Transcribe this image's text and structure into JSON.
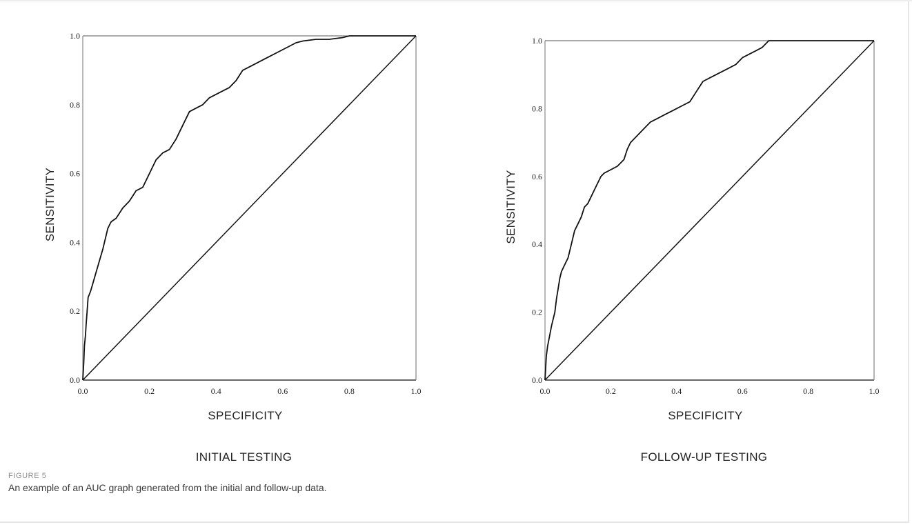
{
  "figure": {
    "label": "FIGURE 5",
    "caption": "An example of an AUC graph generated from the initial and follow-up data."
  },
  "chart_data": [
    {
      "type": "line",
      "title": "INITIAL TESTING",
      "xlabel": "SPECIFICITY",
      "ylabel": "SENSITIVITY",
      "xlim": [
        0,
        1
      ],
      "ylim": [
        0,
        1
      ],
      "x_ticks": [
        "0.0",
        "0.2",
        "0.4",
        "0.6",
        "0.8",
        "1.0"
      ],
      "y_ticks": [
        "0.0",
        "0.2",
        "0.4",
        "0.6",
        "0.8",
        "1.0"
      ],
      "grid": false,
      "series": [
        {
          "role": "roc",
          "x": [
            0.0,
            0.003,
            0.005,
            0.008,
            0.01,
            0.013,
            0.016,
            0.02,
            0.024,
            0.03,
            0.036,
            0.042,
            0.048,
            0.054,
            0.06,
            0.065,
            0.07,
            0.075,
            0.08,
            0.085,
            0.1,
            0.12,
            0.14,
            0.16,
            0.18,
            0.2,
            0.21,
            0.22,
            0.24,
            0.26,
            0.28,
            0.3,
            0.32,
            0.34,
            0.36,
            0.38,
            0.4,
            0.42,
            0.44,
            0.46,
            0.48,
            0.5,
            0.52,
            0.54,
            0.56,
            0.58,
            0.6,
            0.62,
            0.64,
            0.66,
            0.7,
            0.74,
            0.78,
            0.8,
            0.82,
            0.9,
            1.0
          ],
          "y": [
            0.0,
            0.05,
            0.1,
            0.13,
            0.16,
            0.2,
            0.24,
            0.25,
            0.26,
            0.28,
            0.3,
            0.32,
            0.34,
            0.36,
            0.38,
            0.4,
            0.42,
            0.44,
            0.45,
            0.46,
            0.47,
            0.5,
            0.52,
            0.55,
            0.56,
            0.6,
            0.62,
            0.64,
            0.66,
            0.67,
            0.7,
            0.74,
            0.78,
            0.79,
            0.8,
            0.82,
            0.83,
            0.84,
            0.85,
            0.87,
            0.9,
            0.91,
            0.92,
            0.93,
            0.94,
            0.95,
            0.96,
            0.97,
            0.98,
            0.985,
            0.99,
            0.99,
            0.995,
            1.0,
            1.0,
            1.0,
            1.0
          ]
        },
        {
          "role": "reference",
          "x": [
            0,
            1
          ],
          "y": [
            0,
            1
          ]
        }
      ]
    },
    {
      "type": "line",
      "title": "FOLLOW-UP TESTING",
      "xlabel": "SPECIFICITY",
      "ylabel": "SENSITIVITY",
      "xlim": [
        0,
        1
      ],
      "ylim": [
        0,
        1
      ],
      "x_ticks": [
        "0.0",
        "0.2",
        "0.4",
        "0.6",
        "0.8",
        "1.0"
      ],
      "y_ticks": [
        "0.0",
        "0.2",
        "0.4",
        "0.6",
        "0.8",
        "1.0"
      ],
      "grid": false,
      "series": [
        {
          "role": "roc",
          "x": [
            0.0,
            0.004,
            0.008,
            0.012,
            0.016,
            0.02,
            0.025,
            0.03,
            0.035,
            0.04,
            0.045,
            0.05,
            0.06,
            0.07,
            0.08,
            0.09,
            0.1,
            0.11,
            0.12,
            0.13,
            0.14,
            0.15,
            0.16,
            0.17,
            0.18,
            0.2,
            0.22,
            0.24,
            0.25,
            0.26,
            0.28,
            0.3,
            0.32,
            0.34,
            0.36,
            0.38,
            0.4,
            0.42,
            0.44,
            0.46,
            0.48,
            0.5,
            0.52,
            0.54,
            0.56,
            0.58,
            0.6,
            0.62,
            0.64,
            0.66,
            0.67,
            0.68,
            0.7,
            0.74,
            0.78,
            0.82,
            0.86,
            0.9,
            1.0
          ],
          "y": [
            0.0,
            0.07,
            0.1,
            0.12,
            0.14,
            0.16,
            0.18,
            0.2,
            0.24,
            0.27,
            0.3,
            0.32,
            0.34,
            0.36,
            0.4,
            0.44,
            0.46,
            0.48,
            0.51,
            0.52,
            0.54,
            0.56,
            0.58,
            0.6,
            0.61,
            0.62,
            0.63,
            0.65,
            0.68,
            0.7,
            0.72,
            0.74,
            0.76,
            0.77,
            0.78,
            0.79,
            0.8,
            0.81,
            0.82,
            0.85,
            0.88,
            0.89,
            0.9,
            0.91,
            0.92,
            0.93,
            0.95,
            0.96,
            0.97,
            0.98,
            0.99,
            1.0,
            1.0,
            1.0,
            1.0,
            1.0,
            1.0,
            1.0,
            1.0
          ]
        },
        {
          "role": "reference",
          "x": [
            0,
            1
          ],
          "y": [
            0,
            1
          ]
        }
      ]
    }
  ]
}
